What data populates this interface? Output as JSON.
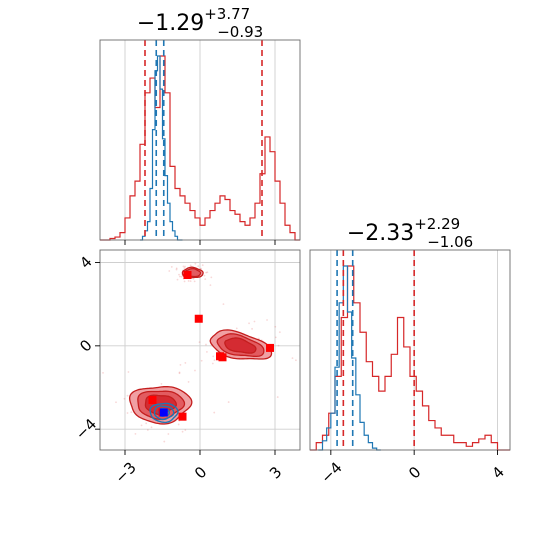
{
  "colors": {
    "red": "#d62728",
    "red_dark": "#c41e1e",
    "red_fill_light": "#f0a0a3",
    "red_fill_mid": "#e25b60",
    "red_fill_dark": "#d42b32",
    "blue": "#1f77b4",
    "blue_marker": "#0000ff",
    "red_marker": "#ff0000"
  },
  "titles": {
    "param1": {
      "main": "−1.29",
      "sup": "+3.77",
      "sub": "−0.93"
    },
    "param2": {
      "main": "−2.33",
      "sup": "+2.29",
      "sub": "−1.06"
    }
  },
  "chart_data": [
    {
      "type": "histogram",
      "panel": "marginal-param1",
      "xlim": [
        -4.0,
        4.0
      ],
      "xticks": [
        -3,
        0,
        3
      ],
      "grid": true,
      "series": [
        {
          "color": "red",
          "bin_edges": [
            -4.0,
            -3.8,
            -3.6,
            -3.4,
            -3.2,
            -3.0,
            -2.8,
            -2.6,
            -2.4,
            -2.2,
            -2.0,
            -1.8,
            -1.6,
            -1.4,
            -1.2,
            -1.0,
            -0.8,
            -0.6,
            -0.4,
            -0.2,
            0.0,
            0.2,
            0.4,
            0.6,
            0.8,
            1.0,
            1.2,
            1.4,
            1.6,
            1.8,
            2.0,
            2.2,
            2.4,
            2.6,
            2.8,
            3.0,
            3.2,
            3.4,
            3.6,
            3.8,
            4.0
          ],
          "density": [
            0.0,
            0.0,
            0.002,
            0.004,
            0.01,
            0.03,
            0.06,
            0.08,
            0.13,
            0.2,
            0.22,
            0.18,
            0.25,
            0.2,
            0.1,
            0.07,
            0.06,
            0.05,
            0.04,
            0.03,
            0.02,
            0.03,
            0.04,
            0.05,
            0.06,
            0.055,
            0.04,
            0.035,
            0.025,
            0.02,
            0.03,
            0.05,
            0.09,
            0.14,
            0.12,
            0.08,
            0.05,
            0.02,
            0.01,
            0.0
          ]
        },
        {
          "color": "blue",
          "bin_edges": [
            -2.4,
            -2.3,
            -2.2,
            -2.1,
            -2.0,
            -1.9,
            -1.8,
            -1.7,
            -1.6,
            -1.5,
            -1.4,
            -1.3,
            -1.2,
            -1.1,
            -1.0,
            -0.9,
            -0.8,
            -0.7
          ],
          "density": [
            0.0,
            0.02,
            0.05,
            0.1,
            0.28,
            0.6,
            0.92,
            1.0,
            0.82,
            0.55,
            0.35,
            0.2,
            0.1,
            0.05,
            0.02,
            0.0,
            0.0
          ]
        }
      ],
      "quantile_lines": [
        {
          "color": "red",
          "x": [
            -2.2,
            2.48
          ]
        },
        {
          "color": "blue",
          "x": [
            -1.75,
            -1.45
          ]
        }
      ]
    },
    {
      "type": "contour",
      "panel": "joint-param1-param2",
      "xlim": [
        -4.0,
        4.0
      ],
      "ylim": [
        -5.0,
        4.6
      ],
      "xticks": [
        -3,
        0,
        3
      ],
      "yticks": [
        -4,
        0,
        4
      ],
      "grid": true,
      "red_modes": [
        {
          "cx": -1.6,
          "cy": -2.8,
          "rx": 2.2,
          "ry": 1.6,
          "rot": 0
        },
        {
          "cx": 1.6,
          "cy": 0.0,
          "rx": 2.3,
          "ry": 1.1,
          "rot": -0.3
        },
        {
          "cx": -0.3,
          "cy": 3.5,
          "rx": 0.75,
          "ry": 0.45,
          "rot": 0
        }
      ],
      "blue_mode": {
        "cx": -1.45,
        "cy": -3.2,
        "rx": 0.55,
        "ry": 0.45
      },
      "red_markers": [
        {
          "x": -0.5,
          "y": 3.4
        },
        {
          "x": -0.05,
          "y": 1.3
        },
        {
          "x": 0.8,
          "y": -0.5
        },
        {
          "x": 0.9,
          "y": -0.55
        },
        {
          "x": 2.8,
          "y": -0.1
        },
        {
          "x": -1.9,
          "y": -2.6
        },
        {
          "x": -0.7,
          "y": -3.4
        },
        {
          "x": -1.5,
          "y": -3.2
        }
      ],
      "blue_markers": [
        {
          "x": -1.45,
          "y": -3.2
        }
      ]
    },
    {
      "type": "histogram",
      "panel": "marginal-param2",
      "xlim": [
        -5.0,
        4.6
      ],
      "xticks": [
        -4,
        0,
        4
      ],
      "grid": true,
      "series": [
        {
          "color": "red",
          "bin_edges": [
            -5.0,
            -4.7,
            -4.4,
            -4.1,
            -3.8,
            -3.5,
            -3.2,
            -2.9,
            -2.6,
            -2.3,
            -2.0,
            -1.7,
            -1.4,
            -1.1,
            -0.8,
            -0.5,
            -0.2,
            0.1,
            0.4,
            0.7,
            1.0,
            1.3,
            1.6,
            1.9,
            2.2,
            2.5,
            2.8,
            3.1,
            3.4,
            3.7,
            4.0,
            4.3,
            4.6
          ],
          "density": [
            0.0,
            0.01,
            0.02,
            0.05,
            0.1,
            0.18,
            0.25,
            0.2,
            0.16,
            0.12,
            0.1,
            0.08,
            0.1,
            0.13,
            0.18,
            0.14,
            0.1,
            0.08,
            0.06,
            0.04,
            0.03,
            0.02,
            0.02,
            0.01,
            0.01,
            0.005,
            0.01,
            0.015,
            0.02,
            0.01,
            0.0,
            0.0
          ]
        },
        {
          "color": "blue",
          "bin_edges": [
            -4.6,
            -4.4,
            -4.2,
            -4.0,
            -3.8,
            -3.6,
            -3.4,
            -3.2,
            -3.0,
            -2.8,
            -2.6,
            -2.4,
            -2.2,
            -2.0,
            -1.8,
            -1.6
          ],
          "density": [
            0.0,
            0.05,
            0.12,
            0.2,
            0.45,
            0.8,
            1.0,
            0.75,
            0.5,
            0.3,
            0.15,
            0.08,
            0.04,
            0.01,
            0.0
          ]
        }
      ],
      "quantile_lines": [
        {
          "color": "red",
          "x": [
            -3.4,
            0.0
          ]
        },
        {
          "color": "blue",
          "x": [
            -3.7,
            -2.95
          ]
        }
      ]
    }
  ]
}
